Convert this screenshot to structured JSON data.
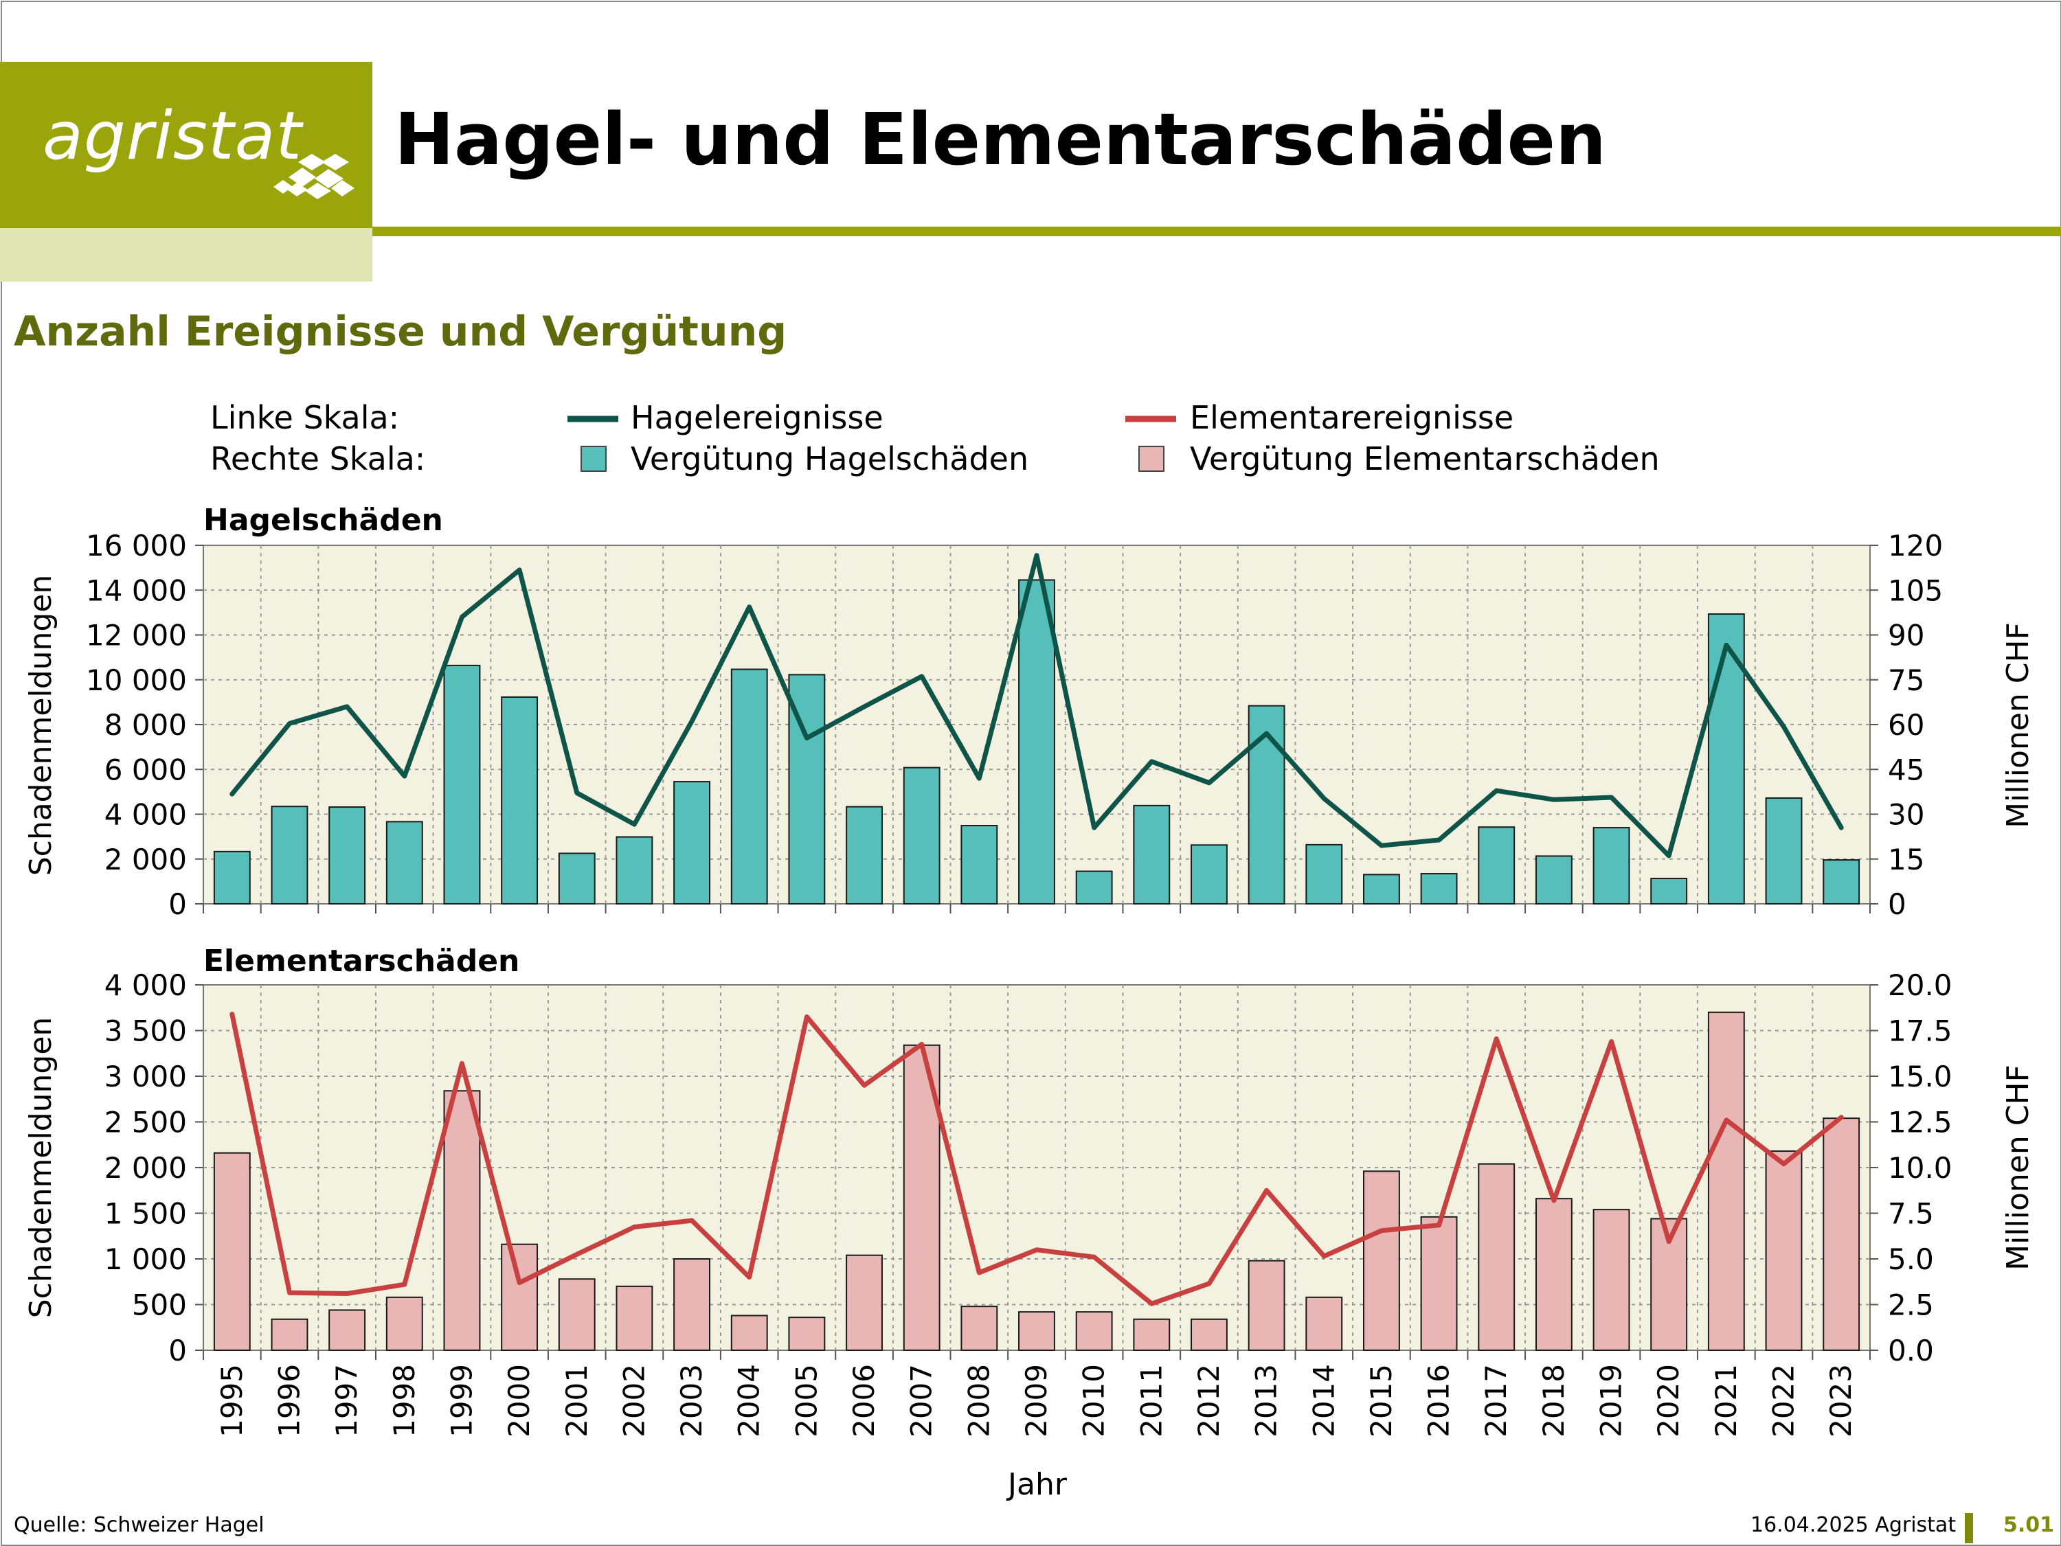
{
  "header": {
    "logo_text": "agristat",
    "title": "Hagel- und Elementarschäden",
    "subtitle": "Anzahl Ereignisse und Vergütung"
  },
  "legend": {
    "left_scale_label": "Linke Skala:",
    "right_scale_label": "Rechte Skala:",
    "hail_events": "Hagelereignisse",
    "element_events": "Elementarereignisse",
    "hail_compensation": "Vergütung Hagelschäden",
    "element_compensation": "Vergütung Elementarschäden"
  },
  "colors": {
    "brand": "#9aa50b",
    "hail_line": "#0f5449",
    "hail_bar": "#56bfb9",
    "element_line": "#c8403f",
    "element_bar": "#e8b7b5",
    "plot_bg": "#f3f2e1"
  },
  "footer": {
    "source": "Quelle: Schweizer Hagel",
    "date": "16.04.2025 Agristat",
    "page": "5.01"
  },
  "chart_data": [
    {
      "type": "bar",
      "panel": "Hagelschäden",
      "title": "Hagelschäden",
      "xlabel": "Jahr",
      "ylabel": "Schadenmeldungen",
      "y2label": "Millionen CHF",
      "ylim": [
        0,
        16000
      ],
      "y2lim": [
        0,
        120
      ],
      "yticks": [
        "0",
        "2 000",
        "4 000",
        "6 000",
        "8 000",
        "10 000",
        "12 000",
        "14 000",
        "16 000"
      ],
      "y2ticks": [
        "0",
        "15",
        "30",
        "45",
        "60",
        "75",
        "90",
        "105",
        "120"
      ],
      "grid": true,
      "categories": [
        "1995",
        "1996",
        "1997",
        "1998",
        "1999",
        "2000",
        "2001",
        "2002",
        "2003",
        "2004",
        "2005",
        "2006",
        "2007",
        "2008",
        "2009",
        "2010",
        "2011",
        "2012",
        "2013",
        "2014",
        "2015",
        "2016",
        "2017",
        "2018",
        "2019",
        "2020",
        "2021",
        "2022",
        "2023"
      ],
      "series": [
        {
          "name": "Vergütung Hagelschäden",
          "type": "bar",
          "axis": "right",
          "values": [
            17.5,
            32.6,
            32.4,
            27.5,
            79.8,
            69.2,
            16.9,
            22.4,
            40.9,
            78.5,
            76.7,
            32.5,
            45.6,
            26.2,
            108.4,
            10.9,
            32.9,
            19.7,
            66.3,
            19.8,
            9.8,
            10.1,
            25.7,
            16.0,
            25.5,
            8.5,
            97.0,
            35.4,
            14.7
          ]
        },
        {
          "name": "Hagelereignisse",
          "type": "line",
          "axis": "left",
          "values": [
            4900,
            8050,
            8800,
            5700,
            12800,
            14900,
            4950,
            3550,
            8150,
            13250,
            7400,
            8800,
            10150,
            5600,
            15550,
            3400,
            6350,
            5400,
            7600,
            4700,
            2600,
            2850,
            5050,
            4650,
            4750,
            2150,
            11550,
            7900,
            3400
          ]
        }
      ]
    },
    {
      "type": "bar",
      "panel": "Elementarschäden",
      "title": "Elementarschäden",
      "xlabel": "Jahr",
      "ylabel": "Schadenmeldungen",
      "y2label": "Millionen CHF",
      "ylim": [
        0,
        4000
      ],
      "y2lim": [
        0,
        20
      ],
      "yticks": [
        "0",
        "500",
        "1 000",
        "1 500",
        "2 000",
        "2 500",
        "3 000",
        "3 500",
        "4 000"
      ],
      "y2ticks": [
        "0.0",
        "2.5",
        "5.0",
        "7.5",
        "10.0",
        "12.5",
        "15.0",
        "17.5",
        "20.0"
      ],
      "grid": true,
      "categories": [
        "1995",
        "1996",
        "1997",
        "1998",
        "1999",
        "2000",
        "2001",
        "2002",
        "2003",
        "2004",
        "2005",
        "2006",
        "2007",
        "2008",
        "2009",
        "2010",
        "2011",
        "2012",
        "2013",
        "2014",
        "2015",
        "2016",
        "2017",
        "2018",
        "2019",
        "2020",
        "2021",
        "2022",
        "2023"
      ],
      "series": [
        {
          "name": "Vergütung Elementarschäden",
          "type": "bar",
          "axis": "right",
          "values": [
            10.8,
            1.7,
            2.2,
            2.9,
            14.2,
            5.8,
            3.9,
            3.5,
            5.0,
            1.9,
            1.8,
            5.2,
            16.7,
            2.4,
            2.1,
            2.1,
            1.7,
            1.7,
            4.9,
            2.9,
            9.8,
            7.3,
            10.2,
            8.3,
            7.7,
            7.2,
            18.5,
            10.9,
            12.7
          ]
        },
        {
          "name": "Elementarereignisse",
          "type": "line",
          "axis": "left",
          "values": [
            3680,
            630,
            620,
            720,
            3140,
            740,
            1050,
            1350,
            1420,
            800,
            3650,
            2900,
            3350,
            850,
            1100,
            1020,
            510,
            730,
            1750,
            1030,
            1310,
            1370,
            3410,
            1640,
            3380,
            1190,
            2520,
            2040,
            2550
          ]
        }
      ]
    }
  ]
}
